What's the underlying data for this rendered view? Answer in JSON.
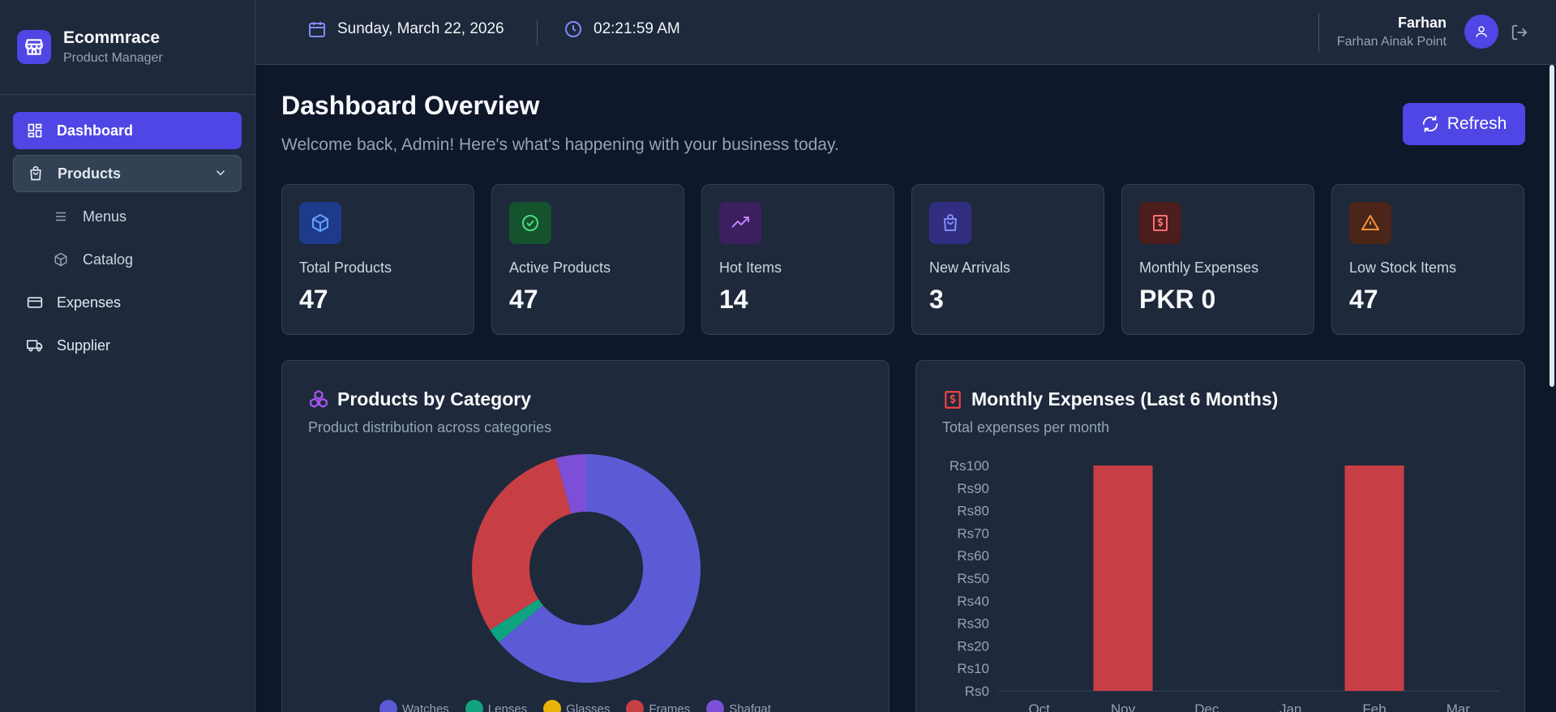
{
  "brand": {
    "title": "Ecommrace",
    "subtitle": "Product Manager"
  },
  "sidebar": {
    "items": [
      {
        "label": "Dashboard",
        "icon": "dashboard-icon",
        "state": "active"
      },
      {
        "label": "Products",
        "icon": "shopping-bag-icon",
        "state": "expanded"
      },
      {
        "label": "Menus",
        "icon": "menu-lines-icon",
        "state": "sub"
      },
      {
        "label": "Catalog",
        "icon": "box-icon",
        "state": "sub"
      },
      {
        "label": "Expenses",
        "icon": "credit-card-icon",
        "state": "normal"
      },
      {
        "label": "Supplier",
        "icon": "truck-icon",
        "state": "normal"
      }
    ]
  },
  "header": {
    "date": "Sunday, March 22, 2026",
    "time": "02:21:59 AM",
    "user_name": "Farhan",
    "user_shop": "Farhan Ainak Point"
  },
  "main": {
    "title": "Dashboard Overview",
    "subtitle": "Welcome back, Admin! Here's what's happening with your business today.",
    "refresh_label": "Refresh"
  },
  "stats": [
    {
      "label": "Total Products",
      "value": "47",
      "icon": "cube-icon",
      "color": "#60a5fa",
      "bg": "#1e3a8a"
    },
    {
      "label": "Active Products",
      "value": "47",
      "icon": "check-circle-icon",
      "color": "#4ade80",
      "bg": "#14532d"
    },
    {
      "label": "Hot Items",
      "value": "14",
      "icon": "trending-up-icon",
      "color": "#c084fc",
      "bg": "#3b1f5e"
    },
    {
      "label": "New Arrivals",
      "value": "3",
      "icon": "shopping-bag-icon",
      "color": "#818cf8",
      "bg": "#312e81"
    },
    {
      "label": "Monthly Expenses",
      "value": "PKR 0",
      "icon": "receipt-icon",
      "color": "#f87171",
      "bg": "#4c1d1d"
    },
    {
      "label": "Low Stock Items",
      "value": "47",
      "icon": "warning-icon",
      "color": "#fb923c",
      "bg": "#4a2518"
    }
  ],
  "category_card": {
    "title": "Products by Category",
    "subtitle": "Product distribution across categories"
  },
  "expenses_card": {
    "title": "Monthly Expenses (Last 6 Months)",
    "subtitle": "Total expenses per month"
  },
  "chart_data": [
    {
      "type": "pie",
      "categories": [
        "Watches",
        "Lenses",
        "Glasses",
        "Frames",
        "Shafqat"
      ],
      "values": [
        30,
        1,
        0,
        14,
        2
      ],
      "colors": [
        "#5b5bd6",
        "#10a37f",
        "#eab308",
        "#c83e45",
        "#7c4fd6"
      ],
      "donut": true,
      "legend": "bottom"
    },
    {
      "type": "bar",
      "categories": [
        "Oct",
        "Nov",
        "Dec",
        "Jan",
        "Feb",
        "Mar"
      ],
      "values": [
        0,
        100,
        0,
        0,
        100,
        0
      ],
      "ylim": [
        0,
        100
      ],
      "yticks": [
        "Rs100",
        "Rs90",
        "Rs80",
        "Rs70",
        "Rs60",
        "Rs50",
        "Rs40",
        "Rs30",
        "Rs20",
        "Rs10",
        "Rs0"
      ],
      "color": "#c83e45"
    }
  ]
}
